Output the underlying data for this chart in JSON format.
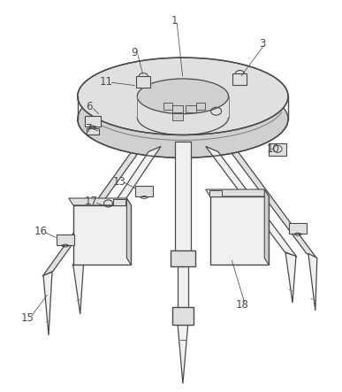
{
  "bg_color": "#ffffff",
  "lc": "#4a4a4a",
  "lc_light": "#7a7a7a",
  "fc_light": "#f0f0f0",
  "fc_mid": "#e0e0e0",
  "fc_dark": "#d0d0d0",
  "figsize": [
    3.87,
    4.43
  ],
  "dpi": 100,
  "labels": [
    [
      "1",
      197,
      22
    ],
    [
      "3",
      298,
      48
    ],
    [
      "9",
      152,
      58
    ],
    [
      "11",
      120,
      92
    ],
    [
      "6",
      100,
      120
    ],
    [
      "7",
      100,
      145
    ],
    [
      "10",
      310,
      168
    ],
    [
      "13",
      135,
      205
    ],
    [
      "17",
      103,
      228
    ],
    [
      "16",
      45,
      262
    ],
    [
      "15",
      30,
      360
    ],
    [
      "18",
      275,
      345
    ]
  ]
}
